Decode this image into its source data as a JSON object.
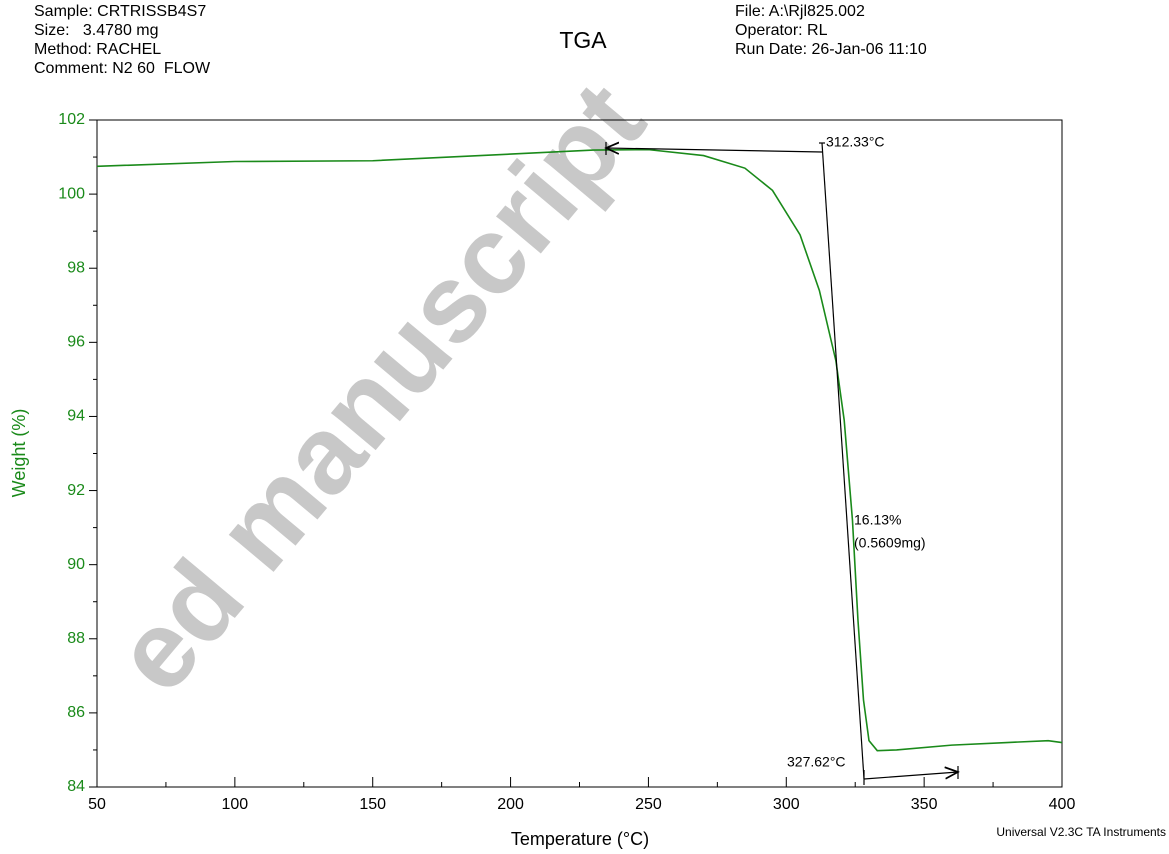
{
  "chart_data": {
    "type": "line",
    "title": "TGA",
    "info_left": [
      "Sample: CRTRISSB4S7",
      "Size:   3.4780 mg",
      "Method: RACHEL",
      "Comment: N2 60  FLOW"
    ],
    "info_right": [
      "File: A:\\Rjl825.002",
      "Operator: RL",
      "Run Date: 26-Jan-06 11:10"
    ],
    "x_label": "Temperature (°C)",
    "y_label": "Weight (%)",
    "footer": "Universal V2.3C TA Instruments",
    "watermark": "ed manuscript",
    "annotations": [
      "312.33°C",
      "16.13%",
      "(0.5609mg)",
      "327.62°C"
    ],
    "xlim": [
      50,
      400
    ],
    "xticks": [
      50,
      100,
      150,
      200,
      250,
      300,
      350,
      400
    ],
    "ylim": [
      84,
      102
    ],
    "yticks": [
      84,
      86,
      88,
      90,
      92,
      94,
      96,
      98,
      100,
      102
    ],
    "series": [
      {
        "name": "Weight",
        "color": "#1a8a1a",
        "x": [
          50,
          100,
          150,
          200,
          230,
          250,
          270,
          285,
          295,
          305,
          312,
          318,
          321,
          324,
          326,
          328,
          330,
          333,
          340,
          360,
          380,
          395,
          400
        ],
        "values": [
          100.75,
          100.88,
          100.9,
          101.08,
          101.19,
          101.2,
          101.04,
          100.7,
          100.1,
          98.9,
          97.4,
          95.5,
          93.9,
          91.2,
          88.5,
          86.35,
          85.25,
          84.98,
          85.0,
          85.13,
          85.2,
          85.25,
          85.2
        ]
      }
    ]
  }
}
